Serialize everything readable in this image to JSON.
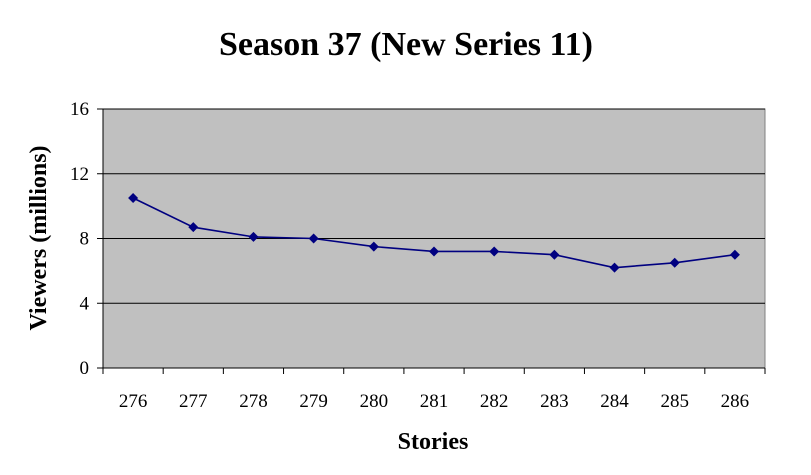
{
  "chart_data": {
    "type": "line",
    "title": "Season 37 (New Series 11)",
    "xlabel": "Stories",
    "ylabel": "Viewers (millions)",
    "categories": [
      "276",
      "277",
      "278",
      "279",
      "280",
      "281",
      "282",
      "283",
      "284",
      "285",
      "286"
    ],
    "series": [
      {
        "values": [
          10.5,
          8.7,
          8.1,
          8.0,
          7.5,
          7.2,
          7.2,
          7.0,
          6.2,
          6.5,
          7.0
        ]
      }
    ],
    "ylim": [
      0,
      16
    ],
    "yticks": [
      "0",
      "4",
      "8",
      "12",
      "16"
    ],
    "grid": true,
    "legend": "none",
    "colors": {
      "plot_background": "#c0c0c0",
      "line": "#000080",
      "marker": "#000080",
      "gridline": "#000000"
    }
  }
}
